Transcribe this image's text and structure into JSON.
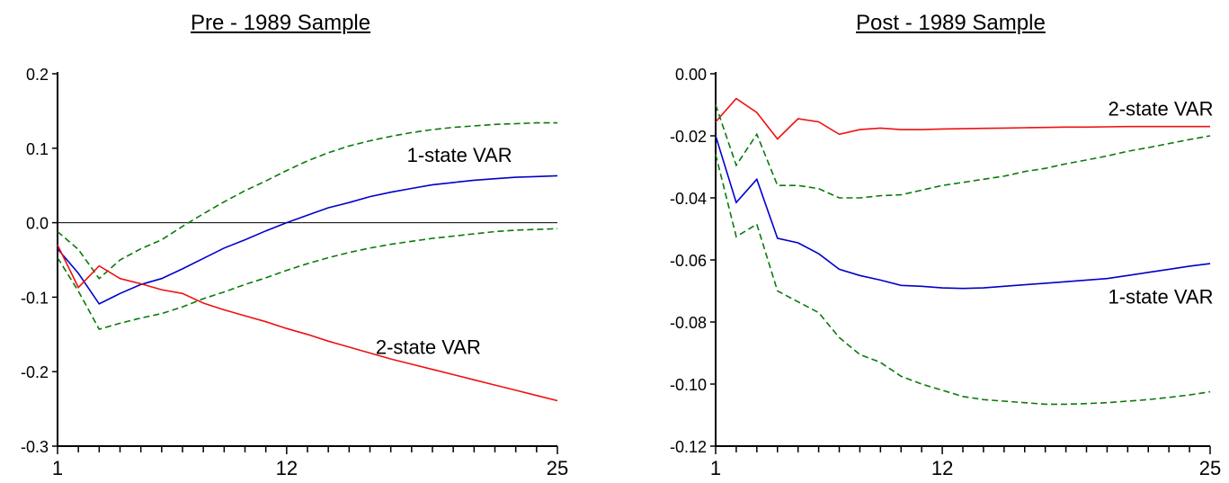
{
  "chart_data": [
    {
      "type": "line",
      "title": "Pre - 1989 Sample",
      "x": [
        1,
        2,
        3,
        4,
        5,
        6,
        7,
        8,
        9,
        10,
        11,
        12,
        13,
        14,
        15,
        16,
        17,
        18,
        19,
        20,
        21,
        22,
        23,
        24,
        25
      ],
      "xticks": [
        1,
        12,
        25
      ],
      "ylim": [
        -0.3,
        0.2
      ],
      "yticks": [
        "0.2",
        "0.1",
        "0.0",
        "-0.1",
        "-0.2",
        "-0.3"
      ],
      "ytick_values": [
        0.2,
        0.1,
        0.0,
        -0.1,
        -0.2,
        -0.3
      ],
      "zero_line": true,
      "series": [
        {
          "key": "one_state",
          "color": "#0000cc",
          "dash": false,
          "values": [
            -0.035,
            -0.068,
            -0.109,
            -0.095,
            -0.083,
            -0.075,
            -0.062,
            -0.048,
            -0.034,
            -0.023,
            -0.011,
            0.0,
            0.01,
            0.02,
            0.027,
            0.035,
            0.041,
            0.046,
            0.051,
            0.054,
            0.057,
            0.059,
            0.061,
            0.062,
            0.063
          ]
        },
        {
          "key": "one_state_upper",
          "color": "#0a7a0a",
          "dash": true,
          "values": [
            -0.012,
            -0.036,
            -0.075,
            -0.05,
            -0.035,
            -0.023,
            -0.005,
            0.012,
            0.028,
            0.043,
            0.056,
            0.07,
            0.083,
            0.094,
            0.103,
            0.11,
            0.116,
            0.121,
            0.125,
            0.128,
            0.13,
            0.132,
            0.133,
            0.134,
            0.134
          ]
        },
        {
          "key": "one_state_lower",
          "color": "#0a7a0a",
          "dash": true,
          "values": [
            -0.047,
            -0.092,
            -0.143,
            -0.135,
            -0.128,
            -0.122,
            -0.113,
            -0.102,
            -0.093,
            -0.083,
            -0.074,
            -0.064,
            -0.055,
            -0.047,
            -0.04,
            -0.034,
            -0.029,
            -0.025,
            -0.021,
            -0.018,
            -0.015,
            -0.012,
            -0.01,
            -0.009,
            -0.008
          ]
        },
        {
          "key": "two_state",
          "color": "#ee1111",
          "dash": false,
          "values": [
            -0.03,
            -0.087,
            -0.058,
            -0.075,
            -0.082,
            -0.09,
            -0.095,
            -0.108,
            -0.117,
            -0.125,
            -0.133,
            -0.142,
            -0.15,
            -0.159,
            -0.167,
            -0.175,
            -0.183,
            -0.19,
            -0.197,
            -0.204,
            -0.211,
            -0.218,
            -0.225,
            -0.232,
            -0.239
          ]
        }
      ],
      "labels": [
        {
          "series": "one_state",
          "text": "1-state VAR",
          "at_x": 20.3,
          "at_y": 0.09
        },
        {
          "series": "two_state",
          "text": "2-state VAR",
          "at_x": 18.8,
          "at_y": -0.168
        }
      ]
    },
    {
      "type": "line",
      "title": "Post - 1989 Sample",
      "x": [
        1,
        2,
        3,
        4,
        5,
        6,
        7,
        8,
        9,
        10,
        11,
        12,
        13,
        14,
        15,
        16,
        17,
        18,
        19,
        20,
        21,
        22,
        23,
        24,
        25
      ],
      "xticks": [
        1,
        12,
        25
      ],
      "ylim": [
        -0.12,
        0.0
      ],
      "yticks": [
        "0.00",
        "-0.02",
        "-0.04",
        "-0.06",
        "-0.08",
        "-0.10",
        "-0.12"
      ],
      "ytick_values": [
        0.0,
        -0.02,
        -0.04,
        -0.06,
        -0.08,
        -0.1,
        -0.12
      ],
      "zero_line": false,
      "series": [
        {
          "key": "two_state",
          "color": "#ee1111",
          "dash": false,
          "values": [
            -0.0155,
            -0.008,
            -0.0125,
            -0.021,
            -0.0145,
            -0.0155,
            -0.0195,
            -0.018,
            -0.0175,
            -0.018,
            -0.018,
            -0.0178,
            -0.0177,
            -0.0176,
            -0.0175,
            -0.0174,
            -0.0173,
            -0.0172,
            -0.0172,
            -0.0171,
            -0.017,
            -0.017,
            -0.017,
            -0.017,
            -0.017
          ]
        },
        {
          "key": "two_state_upper",
          "color": "#0a7a0a",
          "dash": true,
          "values": [
            -0.01,
            -0.0295,
            -0.0195,
            -0.036,
            -0.036,
            -0.037,
            -0.04,
            -0.04,
            -0.0393,
            -0.039,
            -0.0375,
            -0.036,
            -0.035,
            -0.034,
            -0.033,
            -0.0315,
            -0.0305,
            -0.029,
            -0.0278,
            -0.0265,
            -0.025,
            -0.0238,
            -0.0225,
            -0.0212,
            -0.02
          ]
        },
        {
          "key": "one_state",
          "color": "#0000cc",
          "dash": false,
          "values": [
            -0.02,
            -0.0415,
            -0.034,
            -0.053,
            -0.0545,
            -0.058,
            -0.063,
            -0.065,
            -0.0665,
            -0.0682,
            -0.0685,
            -0.069,
            -0.0692,
            -0.069,
            -0.0685,
            -0.068,
            -0.0675,
            -0.067,
            -0.0665,
            -0.066,
            -0.065,
            -0.064,
            -0.063,
            -0.062,
            -0.0612
          ]
        },
        {
          "key": "one_state_lower",
          "color": "#0a7a0a",
          "dash": true,
          "values": [
            -0.026,
            -0.0525,
            -0.0485,
            -0.07,
            -0.0735,
            -0.077,
            -0.085,
            -0.0905,
            -0.093,
            -0.0975,
            -0.1,
            -0.102,
            -0.104,
            -0.105,
            -0.1055,
            -0.106,
            -0.1065,
            -0.1065,
            -0.1063,
            -0.106,
            -0.1055,
            -0.105,
            -0.1043,
            -0.1035,
            -0.1025
          ]
        }
      ],
      "labels": [
        {
          "series": "two_state",
          "text": "2-state VAR",
          "at_x": 22.6,
          "at_y": -0.0115
        },
        {
          "series": "one_state",
          "text": "1-state VAR",
          "at_x": 22.6,
          "at_y": -0.072
        }
      ]
    }
  ]
}
